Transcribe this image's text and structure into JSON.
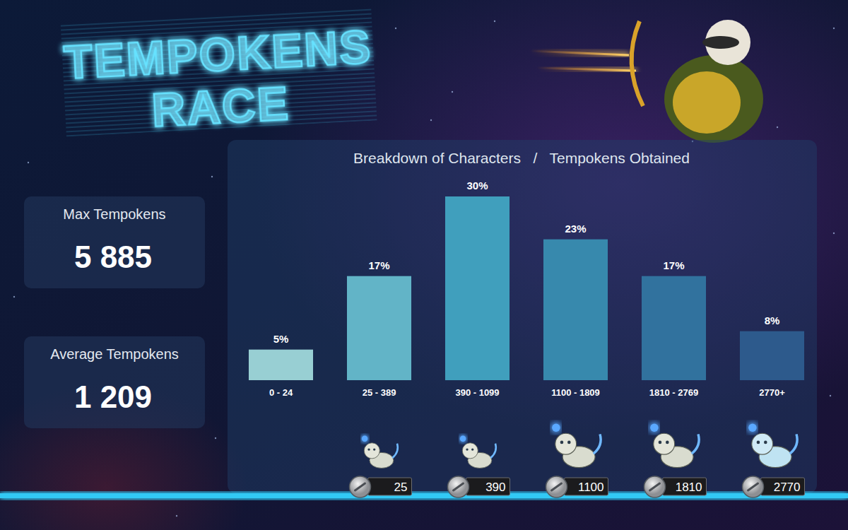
{
  "header": {
    "title": [
      "TEMPOKENS",
      "RACE"
    ]
  },
  "stats": [
    {
      "label": "Max Tempokens",
      "value": "5 885"
    },
    {
      "label": "Average Tempokens",
      "value": "1 209"
    }
  ],
  "chart_data": {
    "type": "bar",
    "title": "Breakdown of Characters   /   Tempokens Obtained",
    "categories": [
      "0 - 24",
      "25 - 389",
      "390 - 1099",
      "1100 - 1809",
      "1810 - 2769",
      "2770+"
    ],
    "values": [
      5,
      17,
      30,
      23,
      17,
      8
    ],
    "value_labels": [
      "5%",
      "17%",
      "30%",
      "23%",
      "17%",
      "8%"
    ],
    "data_labels": true,
    "tick_labels": "x",
    "colors": [
      "#98cfd3",
      "#62b4c7",
      "#409fbd",
      "#3789ad",
      "#31729e",
      "#2d5a8c"
    ],
    "reward_thresholds": [
      null,
      25,
      390,
      1100,
      1810,
      2770
    ]
  }
}
